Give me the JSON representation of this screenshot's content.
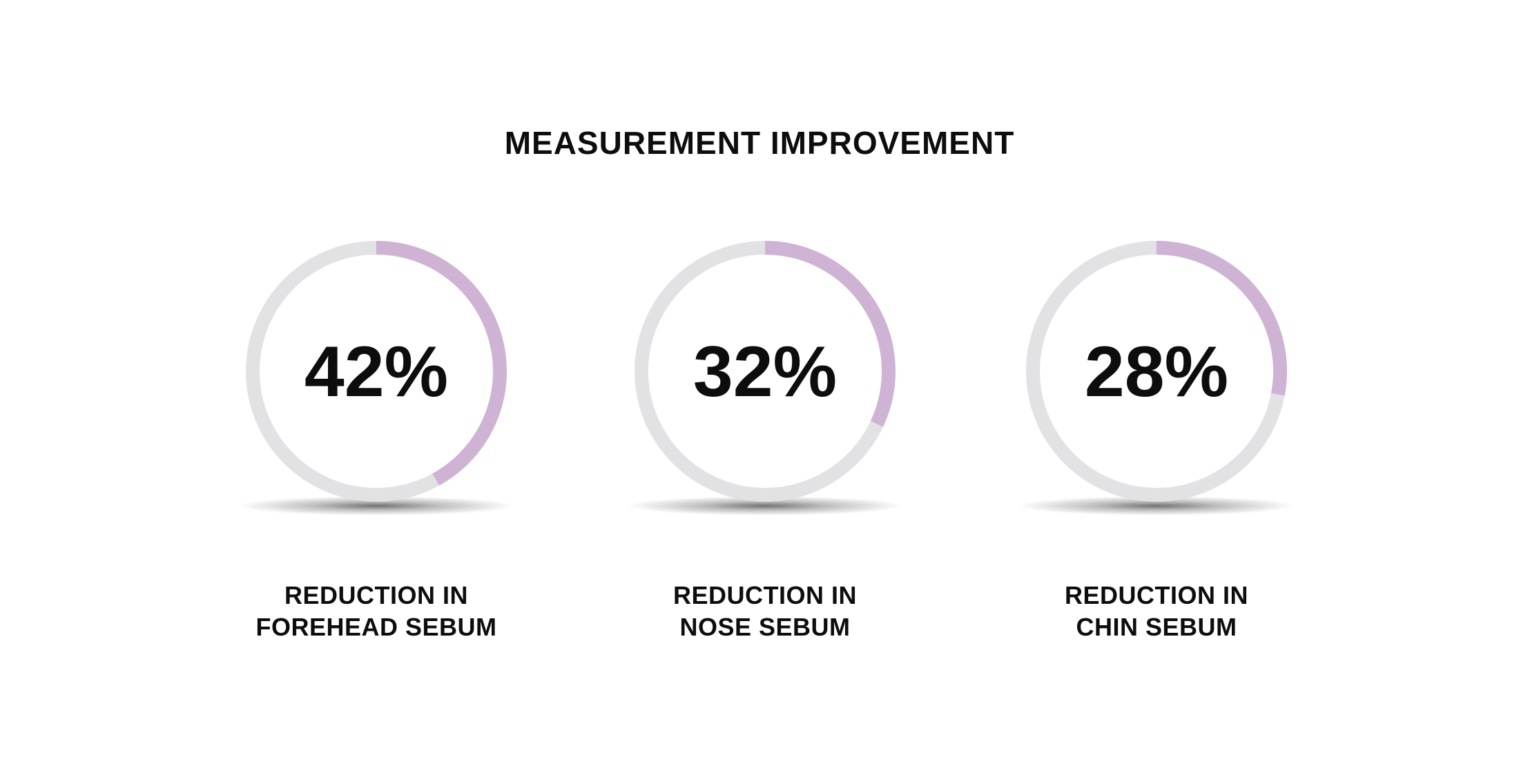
{
  "chart_data": {
    "type": "pie",
    "title": "MEASUREMENT IMPROVEMENT",
    "items": [
      {
        "value": 42,
        "display": "42%",
        "label_lines": [
          "REDUCTION IN",
          "FOREHEAD SEBUM"
        ]
      },
      {
        "value": 32,
        "display": "32%",
        "label_lines": [
          "REDUCTION IN",
          "NOSE SEBUM"
        ]
      },
      {
        "value": 28,
        "display": "28%",
        "label_lines": [
          "REDUCTION IN",
          "CHIN SEBUM"
        ]
      }
    ]
  },
  "colors": {
    "track": "#e2e2e4",
    "progress": "#cfb3d5",
    "text": "#0d0d0d"
  }
}
